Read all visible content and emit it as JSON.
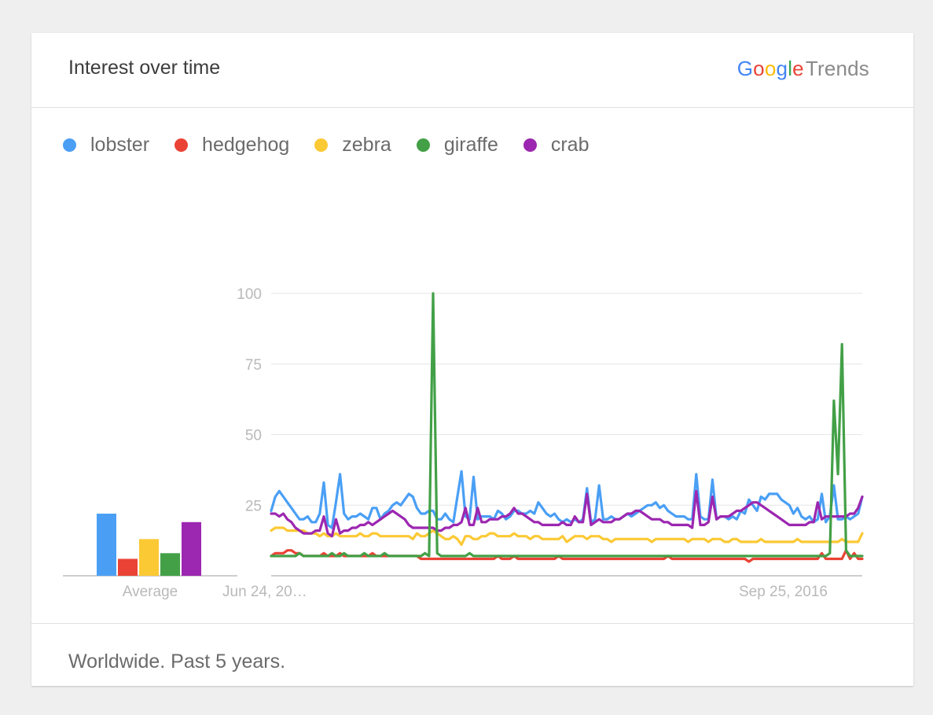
{
  "card": {
    "title": "Interest over time",
    "footer": "Worldwide. Past 5 years."
  },
  "brand": {
    "logo_text": "Google",
    "product": "Trends"
  },
  "colors": {
    "lobster": "#4a9ff5",
    "hedgehog": "#ea4335",
    "zebra": "#fbc934",
    "giraffe": "#43a047",
    "crab": "#9c27b0",
    "grid": "#e6e6e6",
    "axis": "#9e9e9e",
    "tick_text": "#b9b9b9"
  },
  "chart_data": {
    "type": "line",
    "title": "Interest over time",
    "xlabel": "",
    "ylabel": "",
    "ylim": [
      0,
      100
    ],
    "y_ticks": [
      25,
      50,
      75,
      100
    ],
    "grid": true,
    "legend_placement": "top-left",
    "x_start_label": "Jun 24, 20…",
    "x_end_label": "Sep 25, 2016",
    "average": {
      "label": "Average",
      "values": [
        {
          "name": "lobster",
          "value": 22
        },
        {
          "name": "hedgehog",
          "value": 6
        },
        {
          "name": "zebra",
          "value": 13
        },
        {
          "name": "giraffe",
          "value": 8
        },
        {
          "name": "crab",
          "value": 19
        }
      ]
    },
    "series": [
      {
        "name": "lobster",
        "values": [
          23,
          28,
          30,
          28,
          26,
          24,
          22,
          20,
          20,
          21,
          19,
          19,
          22,
          33,
          18,
          17,
          26,
          36,
          22,
          20,
          21,
          21,
          22,
          21,
          20,
          24,
          24,
          20,
          22,
          23,
          25,
          26,
          25,
          27,
          29,
          28,
          24,
          22,
          22,
          23,
          23,
          20,
          20,
          22,
          20,
          19,
          28,
          37,
          21,
          20,
          35,
          20,
          21,
          21,
          21,
          20,
          23,
          22,
          20,
          21,
          23,
          23,
          22,
          22,
          23,
          22,
          26,
          24,
          22,
          21,
          22,
          20,
          19,
          20,
          19,
          20,
          19,
          20,
          31,
          19,
          20,
          32,
          20,
          20,
          21,
          20,
          20,
          21,
          22,
          21,
          22,
          23,
          24,
          25,
          25,
          26,
          24,
          25,
          23,
          22,
          21,
          21,
          21,
          20,
          20,
          36,
          21,
          20,
          20,
          34,
          20,
          21,
          21,
          20,
          21,
          20,
          23,
          22,
          27,
          25,
          23,
          28,
          27,
          29,
          29,
          29,
          27,
          26,
          25,
          22,
          24,
          21,
          20,
          21,
          19,
          20,
          29,
          19,
          21,
          32,
          20,
          20,
          21,
          20,
          21,
          22,
          28
        ]
      },
      {
        "name": "hedgehog",
        "values": [
          7,
          8,
          8,
          8,
          9,
          9,
          8,
          8,
          7,
          7,
          7,
          7,
          7,
          8,
          7,
          7,
          7,
          8,
          7,
          7,
          7,
          7,
          7,
          7,
          7,
          8,
          7,
          7,
          7,
          7,
          7,
          7,
          7,
          7,
          7,
          7,
          7,
          6,
          6,
          6,
          6,
          6,
          6,
          6,
          6,
          6,
          6,
          6,
          6,
          6,
          6,
          6,
          6,
          6,
          6,
          6,
          7,
          6,
          6,
          6,
          7,
          6,
          6,
          6,
          6,
          6,
          6,
          6,
          6,
          6,
          6,
          7,
          6,
          6,
          6,
          6,
          6,
          6,
          6,
          6,
          6,
          6,
          6,
          6,
          6,
          6,
          6,
          6,
          6,
          6,
          6,
          6,
          6,
          6,
          6,
          6,
          6,
          6,
          7,
          6,
          6,
          6,
          6,
          6,
          6,
          6,
          6,
          6,
          6,
          6,
          6,
          6,
          6,
          6,
          6,
          6,
          6,
          6,
          5,
          6,
          6,
          6,
          6,
          6,
          6,
          6,
          6,
          6,
          6,
          6,
          6,
          6,
          6,
          6,
          6,
          6,
          8,
          6,
          6,
          6,
          6,
          6,
          9,
          6,
          8,
          6,
          6
        ]
      },
      {
        "name": "zebra",
        "values": [
          16,
          17,
          17,
          17,
          16,
          16,
          16,
          16,
          16,
          15,
          15,
          15,
          14,
          15,
          14,
          14,
          15,
          14,
          14,
          14,
          14,
          14,
          15,
          14,
          14,
          15,
          15,
          14,
          14,
          14,
          14,
          14,
          14,
          14,
          14,
          13,
          15,
          14,
          14,
          15,
          16,
          15,
          14,
          13,
          13,
          14,
          13,
          11,
          14,
          14,
          13,
          13,
          14,
          14,
          15,
          15,
          14,
          14,
          14,
          14,
          15,
          14,
          14,
          14,
          13,
          14,
          14,
          13,
          13,
          13,
          13,
          13,
          14,
          12,
          13,
          14,
          14,
          14,
          13,
          14,
          14,
          14,
          13,
          13,
          12,
          13,
          13,
          13,
          13,
          13,
          13,
          13,
          13,
          13,
          12,
          13,
          13,
          13,
          13,
          13,
          13,
          13,
          13,
          12,
          13,
          13,
          13,
          13,
          12,
          13,
          13,
          13,
          12,
          12,
          13,
          13,
          12,
          12,
          12,
          12,
          12,
          13,
          12,
          12,
          12,
          12,
          12,
          12,
          12,
          12,
          13,
          12,
          12,
          12,
          12,
          12,
          12,
          12,
          12,
          12,
          12,
          13,
          12,
          12,
          12,
          12,
          15
        ]
      },
      {
        "name": "giraffe",
        "values": [
          7,
          7,
          7,
          7,
          7,
          7,
          7,
          8,
          7,
          7,
          7,
          7,
          7,
          7,
          7,
          8,
          7,
          7,
          8,
          7,
          7,
          7,
          7,
          8,
          7,
          7,
          7,
          7,
          8,
          7,
          7,
          7,
          7,
          7,
          7,
          7,
          7,
          7,
          8,
          7,
          100,
          8,
          7,
          7,
          7,
          7,
          7,
          7,
          7,
          8,
          7,
          7,
          7,
          7,
          7,
          7,
          7,
          7,
          7,
          7,
          7,
          7,
          7,
          7,
          7,
          7,
          7,
          7,
          7,
          7,
          7,
          7,
          7,
          7,
          7,
          7,
          7,
          7,
          7,
          7,
          7,
          7,
          7,
          7,
          7,
          7,
          7,
          7,
          7,
          7,
          7,
          7,
          7,
          7,
          7,
          7,
          7,
          7,
          7,
          7,
          7,
          7,
          7,
          7,
          7,
          7,
          7,
          7,
          7,
          7,
          7,
          7,
          7,
          7,
          7,
          7,
          7,
          7,
          7,
          7,
          7,
          7,
          7,
          7,
          7,
          7,
          7,
          7,
          7,
          7,
          7,
          7,
          7,
          7,
          7,
          7,
          7,
          7,
          8,
          62,
          36,
          82,
          9,
          7,
          7,
          7,
          7
        ]
      },
      {
        "name": "crab",
        "values": [
          22,
          22,
          21,
          22,
          20,
          19,
          17,
          16,
          15,
          15,
          15,
          16,
          16,
          21,
          15,
          14,
          20,
          15,
          16,
          16,
          17,
          17,
          18,
          18,
          19,
          18,
          19,
          20,
          21,
          22,
          23,
          22,
          21,
          20,
          18,
          17,
          17,
          17,
          17,
          17,
          17,
          16,
          16,
          17,
          17,
          18,
          18,
          19,
          24,
          18,
          18,
          24,
          19,
          19,
          20,
          20,
          20,
          21,
          21,
          22,
          24,
          22,
          22,
          21,
          20,
          19,
          19,
          18,
          18,
          18,
          18,
          18,
          19,
          18,
          18,
          21,
          19,
          19,
          29,
          18,
          19,
          20,
          19,
          19,
          19,
          20,
          20,
          21,
          22,
          22,
          23,
          23,
          22,
          21,
          20,
          20,
          20,
          19,
          19,
          18,
          18,
          18,
          18,
          18,
          17,
          30,
          18,
          18,
          19,
          28,
          20,
          21,
          21,
          21,
          22,
          23,
          23,
          24,
          25,
          26,
          26,
          25,
          24,
          23,
          22,
          21,
          20,
          19,
          18,
          18,
          18,
          18,
          18,
          19,
          19,
          26,
          20,
          21,
          21,
          21,
          21,
          21,
          21,
          22,
          22,
          24,
          28
        ]
      }
    ]
  }
}
